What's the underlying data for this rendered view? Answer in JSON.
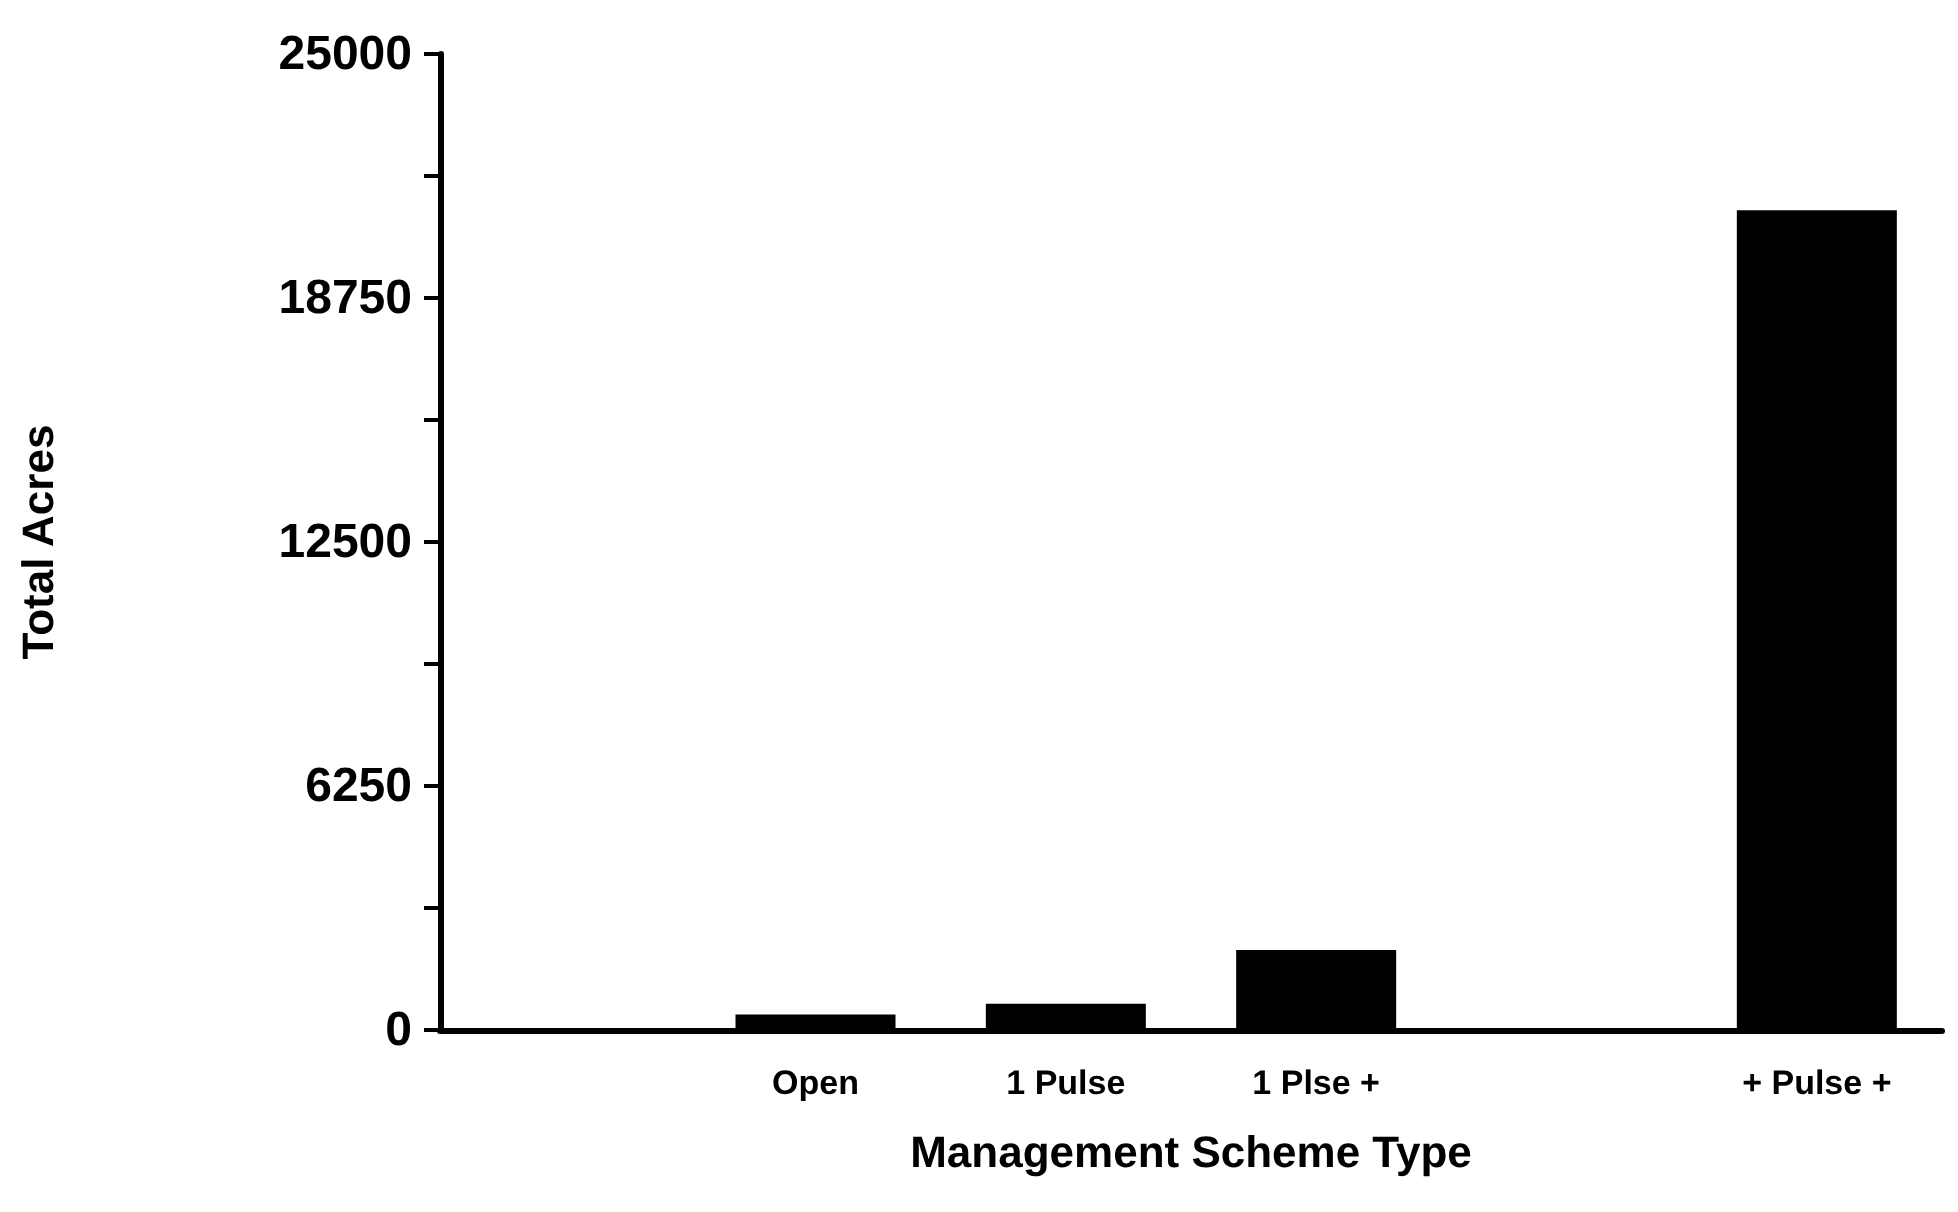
{
  "chart_data": {
    "type": "bar",
    "xlabel": "Management Scheme Type",
    "ylabel": "Total Acres",
    "categories": [
      null,
      "Open",
      "1 Pulse",
      "1 Plse +",
      null,
      "+ Pulse +"
    ],
    "values": [
      null,
      400,
      670,
      2050,
      null,
      21000
    ],
    "color": "#000000",
    "ylim": [
      0,
      25000
    ],
    "yticks": [
      0,
      {
        "value": 3125,
        "label": null
      },
      6250,
      {
        "value": 9375,
        "label": null
      },
      12500,
      {
        "value": 15625,
        "label": null
      },
      18750,
      {
        "value": 21875,
        "label": null
      },
      25000
    ],
    "grid": false
  }
}
